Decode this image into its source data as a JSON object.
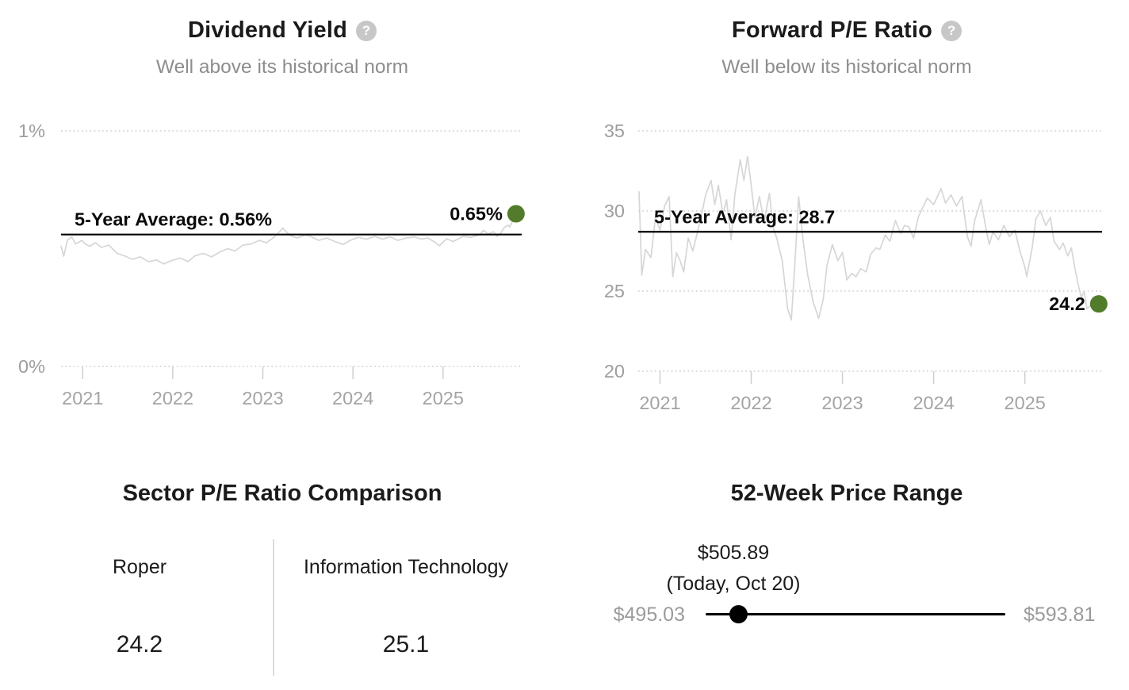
{
  "colors": {
    "current_dot_green": "#527c2b",
    "sparkline_gray": "#d6d6d6",
    "average_line": "#000000",
    "axis_text": "#9e9e9e",
    "subtitle_text": "#8d8d8d"
  },
  "chart_data": [
    {
      "type": "line",
      "title": "Dividend Yield",
      "help_icon": "?",
      "subtitle": "Well above its historical norm",
      "xlim": [
        2020.76,
        2025.82
      ],
      "ylim": [
        0,
        1
      ],
      "y_ticks": [
        {
          "v": 1,
          "label": "1%"
        },
        {
          "v": 0,
          "label": "0%"
        }
      ],
      "x_ticks": [
        {
          "v": 2021,
          "label": "2021"
        },
        {
          "v": 2022,
          "label": "2022"
        },
        {
          "v": 2023,
          "label": "2023"
        },
        {
          "v": 2024,
          "label": "2024"
        },
        {
          "v": 2025,
          "label": "2025"
        }
      ],
      "average": {
        "v": 0.56,
        "label": "5-Year Average: 0.56%"
      },
      "current": {
        "v": 0.65,
        "label": "0.65%"
      },
      "grid": "dotted",
      "series": [
        {
          "name": "Dividend Yield (5-year history)",
          "points": [
            [
              2020.76,
              0.51
            ],
            [
              2020.79,
              0.468
            ],
            [
              2020.83,
              0.535
            ],
            [
              2020.88,
              0.55
            ],
            [
              2020.92,
              0.52
            ],
            [
              2020.96,
              0.528
            ],
            [
              2020.99,
              0.535
            ],
            [
              2021.03,
              0.52
            ],
            [
              2021.08,
              0.51
            ],
            [
              2021.14,
              0.525
            ],
            [
              2021.21,
              0.505
            ],
            [
              2021.29,
              0.515
            ],
            [
              2021.33,
              0.5
            ],
            [
              2021.38,
              0.48
            ],
            [
              2021.46,
              0.47
            ],
            [
              2021.55,
              0.455
            ],
            [
              2021.64,
              0.465
            ],
            [
              2021.73,
              0.445
            ],
            [
              2021.82,
              0.452
            ],
            [
              2021.9,
              0.435
            ],
            [
              2021.99,
              0.45
            ],
            [
              2022.08,
              0.46
            ],
            [
              2022.17,
              0.445
            ],
            [
              2022.25,
              0.47
            ],
            [
              2022.34,
              0.48
            ],
            [
              2022.43,
              0.465
            ],
            [
              2022.52,
              0.485
            ],
            [
              2022.61,
              0.5
            ],
            [
              2022.69,
              0.49
            ],
            [
              2022.78,
              0.515
            ],
            [
              2022.87,
              0.52
            ],
            [
              2022.96,
              0.535
            ],
            [
              2023.04,
              0.525
            ],
            [
              2023.13,
              0.55
            ],
            [
              2023.2,
              0.578
            ],
            [
              2023.22,
              0.588
            ],
            [
              2023.26,
              0.57
            ],
            [
              2023.31,
              0.555
            ],
            [
              2023.38,
              0.545
            ],
            [
              2023.47,
              0.558
            ],
            [
              2023.54,
              0.55
            ],
            [
              2023.62,
              0.535
            ],
            [
              2023.71,
              0.545
            ],
            [
              2023.8,
              0.53
            ],
            [
              2023.89,
              0.518
            ],
            [
              2023.97,
              0.535
            ],
            [
              2024.06,
              0.548
            ],
            [
              2024.15,
              0.54
            ],
            [
              2024.24,
              0.552
            ],
            [
              2024.33,
              0.54
            ],
            [
              2024.41,
              0.55
            ],
            [
              2024.5,
              0.535
            ],
            [
              2024.59,
              0.545
            ],
            [
              2024.68,
              0.55
            ],
            [
              2024.76,
              0.54
            ],
            [
              2024.83,
              0.545
            ],
            [
              2024.9,
              0.53
            ],
            [
              2024.96,
              0.512
            ],
            [
              2025.04,
              0.542
            ],
            [
              2025.11,
              0.53
            ],
            [
              2025.22,
              0.552
            ],
            [
              2025.31,
              0.548
            ],
            [
              2025.4,
              0.558
            ],
            [
              2025.45,
              0.578
            ],
            [
              2025.5,
              0.562
            ],
            [
              2025.56,
              0.572
            ],
            [
              2025.6,
              0.552
            ],
            [
              2025.64,
              0.565
            ],
            [
              2025.68,
              0.59
            ],
            [
              2025.72,
              0.6
            ],
            [
              2025.74,
              0.592
            ],
            [
              2025.77,
              0.615
            ],
            [
              2025.8,
              0.635
            ],
            [
              2025.81,
              0.648
            ]
          ]
        }
      ]
    },
    {
      "type": "line",
      "title": "Forward P/E Ratio",
      "help_icon": "?",
      "subtitle": "Well below its historical norm",
      "xlim": [
        2020.77,
        2025.82
      ],
      "ylim": [
        20,
        35
      ],
      "y_ticks": [
        {
          "v": 35,
          "label": "35"
        },
        {
          "v": 30,
          "label": "30"
        },
        {
          "v": 25,
          "label": "25"
        },
        {
          "v": 20,
          "label": "20"
        }
      ],
      "x_ticks": [
        {
          "v": 2021,
          "label": "2021"
        },
        {
          "v": 2022,
          "label": "2022"
        },
        {
          "v": 2023,
          "label": "2023"
        },
        {
          "v": 2024,
          "label": "2024"
        },
        {
          "v": 2025,
          "label": "2025"
        }
      ],
      "average": {
        "v": 28.7,
        "label": "5-Year Average: 28.7"
      },
      "current": {
        "v": 24.2,
        "label": "24.2"
      },
      "grid": "dotted",
      "series": [
        {
          "name": "Forward P/E (5-year history)",
          "points": [
            [
              2020.77,
              31.2
            ],
            [
              2020.8,
              26.0
            ],
            [
              2020.84,
              27.6
            ],
            [
              2020.9,
              27.1
            ],
            [
              2020.95,
              29.6
            ],
            [
              2021.0,
              28.8
            ],
            [
              2021.05,
              30.3
            ],
            [
              2021.1,
              30.9
            ],
            [
              2021.14,
              25.9
            ],
            [
              2021.18,
              27.4
            ],
            [
              2021.22,
              26.9
            ],
            [
              2021.26,
              26.2
            ],
            [
              2021.31,
              28.3
            ],
            [
              2021.36,
              27.5
            ],
            [
              2021.42,
              28.9
            ],
            [
              2021.46,
              29.9
            ],
            [
              2021.5,
              31.0
            ],
            [
              2021.56,
              31.9
            ],
            [
              2021.6,
              30.4
            ],
            [
              2021.64,
              31.6
            ],
            [
              2021.69,
              29.8
            ],
            [
              2021.73,
              30.7
            ],
            [
              2021.78,
              28.2
            ],
            [
              2021.82,
              31.0
            ],
            [
              2021.88,
              33.2
            ],
            [
              2021.92,
              31.9
            ],
            [
              2021.96,
              33.4
            ],
            [
              2022.0,
              31.6
            ],
            [
              2022.04,
              29.6
            ],
            [
              2022.09,
              30.9
            ],
            [
              2022.14,
              29.3
            ],
            [
              2022.2,
              31.1
            ],
            [
              2022.24,
              29.0
            ],
            [
              2022.28,
              28.3
            ],
            [
              2022.34,
              26.9
            ],
            [
              2022.4,
              23.9
            ],
            [
              2022.44,
              23.2
            ],
            [
              2022.48,
              26.8
            ],
            [
              2022.52,
              30.9
            ],
            [
              2022.57,
              28.1
            ],
            [
              2022.62,
              26.0
            ],
            [
              2022.68,
              24.3
            ],
            [
              2022.74,
              23.3
            ],
            [
              2022.79,
              24.5
            ],
            [
              2022.83,
              26.6
            ],
            [
              2022.89,
              27.9
            ],
            [
              2022.95,
              26.9
            ],
            [
              2023.0,
              27.4
            ],
            [
              2023.05,
              25.7
            ],
            [
              2023.1,
              26.1
            ],
            [
              2023.15,
              25.9
            ],
            [
              2023.2,
              26.4
            ],
            [
              2023.26,
              26.2
            ],
            [
              2023.31,
              27.3
            ],
            [
              2023.37,
              27.7
            ],
            [
              2023.41,
              27.6
            ],
            [
              2023.47,
              28.5
            ],
            [
              2023.52,
              28.1
            ],
            [
              2023.58,
              29.4
            ],
            [
              2023.64,
              28.6
            ],
            [
              2023.68,
              29.1
            ],
            [
              2023.73,
              29.0
            ],
            [
              2023.78,
              28.3
            ],
            [
              2023.83,
              29.6
            ],
            [
              2023.87,
              30.1
            ],
            [
              2023.93,
              30.8
            ],
            [
              2024.0,
              30.4
            ],
            [
              2024.05,
              31.0
            ],
            [
              2024.08,
              31.4
            ],
            [
              2024.13,
              30.5
            ],
            [
              2024.19,
              31.0
            ],
            [
              2024.25,
              30.3
            ],
            [
              2024.31,
              30.9
            ],
            [
              2024.37,
              28.4
            ],
            [
              2024.41,
              27.8
            ],
            [
              2024.45,
              29.4
            ],
            [
              2024.52,
              30.7
            ],
            [
              2024.57,
              29.0
            ],
            [
              2024.61,
              27.9
            ],
            [
              2024.65,
              28.7
            ],
            [
              2024.71,
              28.2
            ],
            [
              2024.77,
              29.1
            ],
            [
              2024.83,
              28.4
            ],
            [
              2024.89,
              28.8
            ],
            [
              2024.95,
              27.4
            ],
            [
              2025.0,
              26.5
            ],
            [
              2025.02,
              25.9
            ],
            [
              2025.08,
              27.7
            ],
            [
              2025.12,
              29.5
            ],
            [
              2025.17,
              30.0
            ],
            [
              2025.23,
              29.1
            ],
            [
              2025.28,
              29.6
            ],
            [
              2025.32,
              28.1
            ],
            [
              2025.38,
              27.6
            ],
            [
              2025.42,
              28.0
            ],
            [
              2025.47,
              27.2
            ],
            [
              2025.51,
              27.7
            ],
            [
              2025.55,
              26.4
            ],
            [
              2025.6,
              25.0
            ],
            [
              2025.62,
              24.6
            ],
            [
              2025.65,
              25.0
            ],
            [
              2025.68,
              23.9
            ],
            [
              2025.72,
              24.1
            ],
            [
              2025.77,
              23.8
            ],
            [
              2025.81,
              24.2
            ]
          ]
        }
      ]
    },
    {
      "type": "table",
      "title": "Sector P/E Ratio Comparison",
      "columns": [
        {
          "label": "Roper",
          "value": "24.2"
        },
        {
          "label": "Information Technology",
          "value": "25.1"
        }
      ]
    },
    {
      "type": "range",
      "title": "52-Week Price Range",
      "current": {
        "label": "$505.89",
        "note": "(Today, Oct 20)",
        "value": 505.89
      },
      "min": {
        "label": "$495.03",
        "value": 495.03
      },
      "max": {
        "label": "$593.81",
        "value": 593.81
      }
    }
  ]
}
